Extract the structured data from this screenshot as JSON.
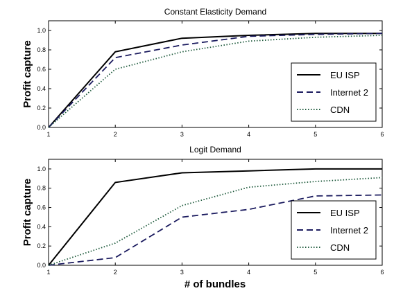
{
  "figure": {
    "xlabel": "# of bundles"
  },
  "chart_data": [
    {
      "type": "line",
      "title": "Constant Elasticity Demand",
      "xlabel": "",
      "ylabel": "Profit capture",
      "x": [
        1,
        2,
        3,
        4,
        5,
        6
      ],
      "x_ticks": [
        "1",
        "2",
        "3",
        "4",
        "5",
        "6"
      ],
      "y_ticks": [
        "0.0",
        "0.2",
        "0.4",
        "0.6",
        "0.8",
        "1.0"
      ],
      "xlim": [
        1,
        6
      ],
      "ylim": [
        0,
        1.1
      ],
      "grid": false,
      "legend_position": "lower-right",
      "series": [
        {
          "name": "EU ISP",
          "values": [
            0,
            0.78,
            0.92,
            0.95,
            0.97,
            0.97
          ],
          "style": "solid",
          "color": "#000000"
        },
        {
          "name": "Internet 2",
          "values": [
            0,
            0.72,
            0.85,
            0.94,
            0.96,
            0.97
          ],
          "style": "dashed",
          "color": "#1a1a5e"
        },
        {
          "name": "CDN",
          "values": [
            0,
            0.6,
            0.78,
            0.89,
            0.93,
            0.95
          ],
          "style": "dotted",
          "color": "#1e5a3c"
        }
      ]
    },
    {
      "type": "line",
      "title": "Logit Demand",
      "xlabel": "# of bundles",
      "ylabel": "Profit capture",
      "x": [
        1,
        2,
        3,
        4,
        5,
        6
      ],
      "x_ticks": [
        "1",
        "2",
        "3",
        "4",
        "5",
        "6"
      ],
      "y_ticks": [
        "0.0",
        "0.2",
        "0.4",
        "0.6",
        "0.8",
        "1.0"
      ],
      "xlim": [
        1,
        6
      ],
      "ylim": [
        0,
        1.1
      ],
      "grid": false,
      "legend_position": "lower-right",
      "series": [
        {
          "name": "EU ISP",
          "values": [
            0,
            0.86,
            0.96,
            0.98,
            1.0,
            1.0
          ],
          "style": "solid",
          "color": "#000000"
        },
        {
          "name": "Internet 2",
          "values": [
            0,
            0.08,
            0.5,
            0.58,
            0.72,
            0.73
          ],
          "style": "dashed",
          "color": "#1a1a5e"
        },
        {
          "name": "CDN",
          "values": [
            0,
            0.23,
            0.62,
            0.81,
            0.87,
            0.91
          ],
          "style": "dotted",
          "color": "#1e5a3c"
        }
      ]
    }
  ]
}
